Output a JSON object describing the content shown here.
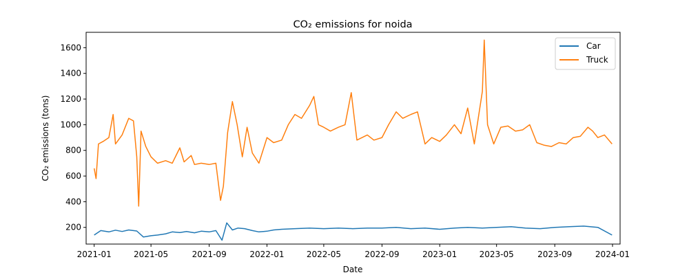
{
  "chart_data": {
    "type": "line",
    "title": "CO₂ emissions for noida",
    "xlabel": "Date",
    "ylabel": "CO₂ emissions (tons)",
    "x_range": [
      "2020-12-15",
      "2024-01-17"
    ],
    "ylim": [
      70,
      1720
    ],
    "x_ticks": [
      {
        "date": "2021-01-01",
        "label": "2021-01"
      },
      {
        "date": "2021-05-01",
        "label": "2021-05"
      },
      {
        "date": "2021-09-01",
        "label": "2021-09"
      },
      {
        "date": "2022-01-01",
        "label": "2022-01"
      },
      {
        "date": "2022-05-01",
        "label": "2022-05"
      },
      {
        "date": "2022-09-01",
        "label": "2022-09"
      },
      {
        "date": "2023-01-01",
        "label": "2023-01"
      },
      {
        "date": "2023-05-01",
        "label": "2023-05"
      },
      {
        "date": "2023-09-01",
        "label": "2023-09"
      },
      {
        "date": "2024-01-01",
        "label": "2024-01"
      }
    ],
    "y_ticks": [
      200,
      400,
      600,
      800,
      1000,
      1200,
      1400,
      1600
    ],
    "grid": false,
    "legend": {
      "placement": "top-right"
    },
    "series": [
      {
        "name": "Car",
        "color": "#1f77b4",
        "points": [
          [
            "2021-01-01",
            140
          ],
          [
            "2021-01-15",
            175
          ],
          [
            "2021-02-01",
            165
          ],
          [
            "2021-02-15",
            178
          ],
          [
            "2021-03-01",
            168
          ],
          [
            "2021-03-15",
            180
          ],
          [
            "2021-04-01",
            172
          ],
          [
            "2021-04-15",
            125
          ],
          [
            "2021-05-01",
            135
          ],
          [
            "2021-05-15",
            140
          ],
          [
            "2021-06-01",
            150
          ],
          [
            "2021-06-15",
            165
          ],
          [
            "2021-07-01",
            160
          ],
          [
            "2021-07-15",
            168
          ],
          [
            "2021-08-01",
            158
          ],
          [
            "2021-08-15",
            170
          ],
          [
            "2021-09-01",
            165
          ],
          [
            "2021-09-15",
            175
          ],
          [
            "2021-09-28",
            100
          ],
          [
            "2021-10-08",
            235
          ],
          [
            "2021-10-20",
            180
          ],
          [
            "2021-11-01",
            195
          ],
          [
            "2021-11-15",
            190
          ],
          [
            "2021-12-01",
            175
          ],
          [
            "2021-12-15",
            165
          ],
          [
            "2022-01-01",
            170
          ],
          [
            "2022-01-15",
            180
          ],
          [
            "2022-02-01",
            185
          ],
          [
            "2022-03-01",
            190
          ],
          [
            "2022-04-01",
            195
          ],
          [
            "2022-05-01",
            190
          ],
          [
            "2022-06-01",
            195
          ],
          [
            "2022-07-01",
            190
          ],
          [
            "2022-08-01",
            195
          ],
          [
            "2022-09-01",
            195
          ],
          [
            "2022-10-01",
            200
          ],
          [
            "2022-11-01",
            190
          ],
          [
            "2022-12-01",
            195
          ],
          [
            "2023-01-01",
            185
          ],
          [
            "2023-02-01",
            195
          ],
          [
            "2023-03-01",
            200
          ],
          [
            "2023-04-01",
            195
          ],
          [
            "2023-05-01",
            200
          ],
          [
            "2023-06-01",
            205
          ],
          [
            "2023-07-01",
            195
          ],
          [
            "2023-08-01",
            190
          ],
          [
            "2023-09-01",
            200
          ],
          [
            "2023-10-01",
            205
          ],
          [
            "2023-11-01",
            210
          ],
          [
            "2023-12-01",
            200
          ],
          [
            "2023-12-31",
            140
          ]
        ]
      },
      {
        "name": "Truck",
        "color": "#ff7f0e",
        "points": [
          [
            "2021-01-01",
            660
          ],
          [
            "2021-01-05",
            580
          ],
          [
            "2021-01-10",
            850
          ],
          [
            "2021-01-20",
            870
          ],
          [
            "2021-02-01",
            900
          ],
          [
            "2021-02-10",
            1080
          ],
          [
            "2021-02-15",
            850
          ],
          [
            "2021-03-01",
            920
          ],
          [
            "2021-03-15",
            1050
          ],
          [
            "2021-03-25",
            1030
          ],
          [
            "2021-04-01",
            750
          ],
          [
            "2021-04-05",
            365
          ],
          [
            "2021-04-10",
            950
          ],
          [
            "2021-04-20",
            830
          ],
          [
            "2021-05-01",
            750
          ],
          [
            "2021-05-15",
            700
          ],
          [
            "2021-06-01",
            720
          ],
          [
            "2021-06-15",
            700
          ],
          [
            "2021-07-01",
            820
          ],
          [
            "2021-07-10",
            710
          ],
          [
            "2021-07-25",
            760
          ],
          [
            "2021-08-01",
            690
          ],
          [
            "2021-08-15",
            700
          ],
          [
            "2021-09-01",
            690
          ],
          [
            "2021-09-15",
            700
          ],
          [
            "2021-09-25",
            410
          ],
          [
            "2021-10-01",
            520
          ],
          [
            "2021-10-10",
            940
          ],
          [
            "2021-10-20",
            1180
          ],
          [
            "2021-10-30",
            1000
          ],
          [
            "2021-11-10",
            750
          ],
          [
            "2021-11-20",
            980
          ],
          [
            "2021-12-01",
            780
          ],
          [
            "2021-12-15",
            700
          ],
          [
            "2022-01-01",
            900
          ],
          [
            "2022-01-15",
            860
          ],
          [
            "2022-02-01",
            880
          ],
          [
            "2022-02-15",
            1000
          ],
          [
            "2022-03-01",
            1080
          ],
          [
            "2022-03-15",
            1050
          ],
          [
            "2022-04-01",
            1150
          ],
          [
            "2022-04-10",
            1220
          ],
          [
            "2022-04-20",
            1000
          ],
          [
            "2022-05-01",
            980
          ],
          [
            "2022-05-15",
            950
          ],
          [
            "2022-06-01",
            980
          ],
          [
            "2022-06-15",
            1000
          ],
          [
            "2022-06-28",
            1250
          ],
          [
            "2022-07-10",
            880
          ],
          [
            "2022-08-01",
            920
          ],
          [
            "2022-08-15",
            880
          ],
          [
            "2022-09-01",
            900
          ],
          [
            "2022-09-15",
            1000
          ],
          [
            "2022-10-01",
            1100
          ],
          [
            "2022-10-15",
            1050
          ],
          [
            "2022-11-01",
            1080
          ],
          [
            "2022-11-15",
            1100
          ],
          [
            "2022-12-01",
            850
          ],
          [
            "2022-12-15",
            900
          ],
          [
            "2023-01-01",
            870
          ],
          [
            "2023-01-15",
            920
          ],
          [
            "2023-02-01",
            1000
          ],
          [
            "2023-02-15",
            930
          ],
          [
            "2023-03-01",
            1130
          ],
          [
            "2023-03-15",
            850
          ],
          [
            "2023-04-01",
            1260
          ],
          [
            "2023-04-05",
            1660
          ],
          [
            "2023-04-12",
            1000
          ],
          [
            "2023-04-25",
            850
          ],
          [
            "2023-05-10",
            980
          ],
          [
            "2023-05-25",
            990
          ],
          [
            "2023-06-10",
            950
          ],
          [
            "2023-06-25",
            960
          ],
          [
            "2023-07-10",
            1000
          ],
          [
            "2023-07-25",
            860
          ],
          [
            "2023-08-10",
            840
          ],
          [
            "2023-08-25",
            830
          ],
          [
            "2023-09-10",
            860
          ],
          [
            "2023-09-25",
            850
          ],
          [
            "2023-10-10",
            900
          ],
          [
            "2023-10-25",
            910
          ],
          [
            "2023-11-10",
            980
          ],
          [
            "2023-11-20",
            950
          ],
          [
            "2023-12-01",
            900
          ],
          [
            "2023-12-15",
            920
          ],
          [
            "2023-12-31",
            850
          ]
        ]
      }
    ]
  }
}
